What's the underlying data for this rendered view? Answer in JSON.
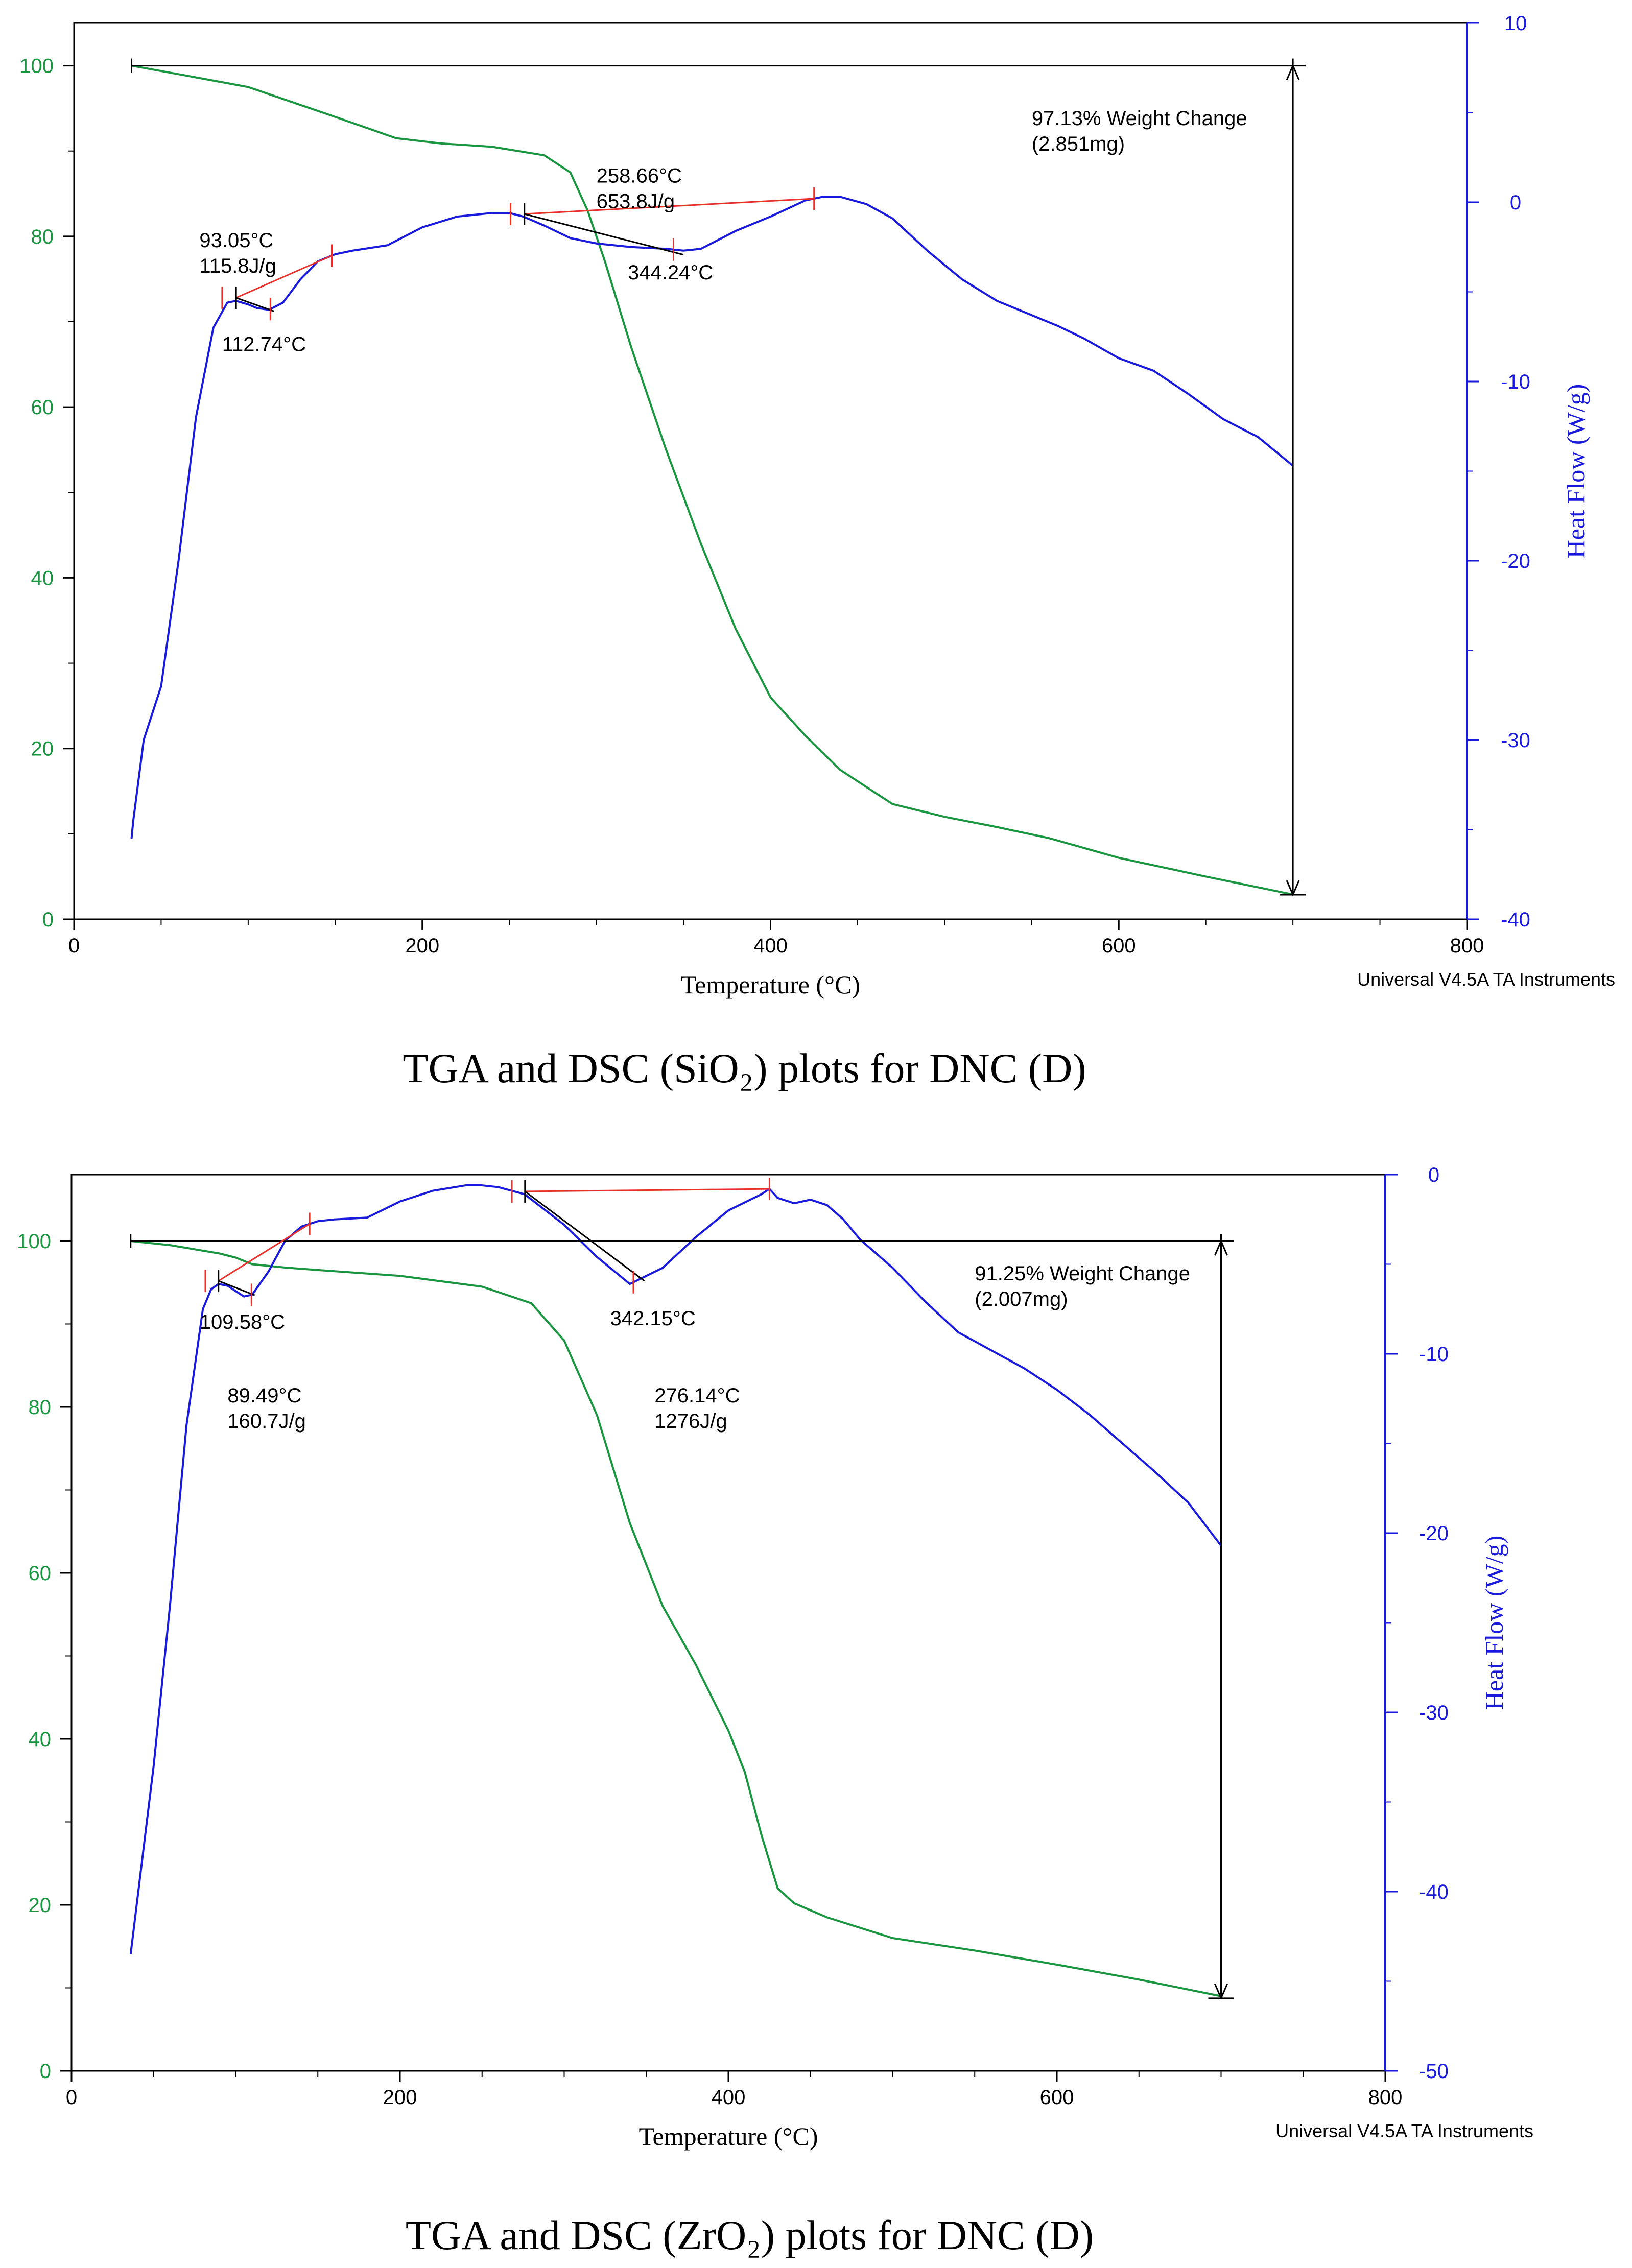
{
  "colors": {
    "tga": "#1a9641",
    "dsc": "#1a1adc",
    "annotation_marker": "#e8312a",
    "annotation_line": "#000000",
    "axes": "#000000"
  },
  "chart_data": [
    {
      "type": "line",
      "title": "TGA and DSC (SiO2) plots for DNC (D)",
      "caption": "TGA and DSC (SiO₂) plots for DNC (D)",
      "xlabel": "Temperature (°C)",
      "ylabel_left": "",
      "ylabel_right": "Heat Flow (W/g)",
      "instrument": "Universal V4.5A TA Instruments",
      "xlim": [
        0,
        800
      ],
      "ylim_left": [
        0,
        105
      ],
      "ylim_right": [
        -40,
        10
      ],
      "xticks": [
        0,
        200,
        400,
        600,
        800
      ],
      "yticks_left": [
        0,
        20,
        40,
        60,
        80,
        100
      ],
      "yticks_right": [
        -40,
        -30,
        -20,
        -10,
        0,
        10
      ],
      "series": [
        {
          "name": "TGA weight (%)",
          "axis": "left",
          "color_key": "tga",
          "x": [
            33,
            60,
            100,
            150,
            185,
            210,
            240,
            270,
            285,
            295,
            305,
            320,
            340,
            360,
            380,
            400,
            420,
            440,
            470,
            500,
            530,
            560,
            600,
            650,
            700
          ],
          "y": [
            100,
            99,
            97.5,
            94,
            91.5,
            90.9,
            90.5,
            89.5,
            87.5,
            83,
            77,
            67,
            55,
            44,
            34,
            26,
            21.5,
            17.5,
            13.5,
            12,
            10.8,
            9.5,
            7.2,
            5,
            2.9
          ]
        },
        {
          "name": "DSC heat flow (W/g)",
          "axis": "right",
          "color_key": "dsc",
          "x": [
            33,
            34,
            40,
            45,
            50,
            60,
            70,
            80,
            88,
            93,
            100,
            105,
            112,
            120,
            130,
            140,
            150,
            160,
            180,
            200,
            220,
            240,
            250,
            258,
            270,
            285,
            300,
            320,
            340,
            350,
            360,
            380,
            400,
            420,
            430,
            440,
            455,
            470,
            490,
            510,
            530,
            550,
            565,
            580,
            600,
            620,
            640,
            660,
            680,
            700
          ],
          "y": [
            -35.5,
            -34.5,
            -30,
            -28.5,
            -27,
            -20,
            -12,
            -7,
            -5.6,
            -5.5,
            -5.7,
            -5.9,
            -6,
            -5.6,
            -4.3,
            -3.3,
            -2.9,
            -2.7,
            -2.4,
            -1.4,
            -0.8,
            -0.6,
            -0.6,
            -0.8,
            -1.3,
            -2,
            -2.3,
            -2.5,
            -2.6,
            -2.7,
            -2.6,
            -1.6,
            -0.8,
            0.1,
            0.3,
            0.3,
            -0.1,
            -0.9,
            -2.7,
            -4.3,
            -5.5,
            -6.3,
            -6.9,
            -7.6,
            -8.7,
            -9.4,
            -10.7,
            -12.1,
            -13.1,
            -14.7
          ]
        }
      ],
      "annotations": [
        {
          "type": "weight_change",
          "label": "97.13% Weight Change",
          "sublabel": "(2.851mg)",
          "x": 700,
          "y_top": 100,
          "y_bottom": 2.87,
          "x_start": 33
        },
        {
          "type": "peak",
          "label": "93.05°C",
          "sublabel": "115.8J/g",
          "onset": 93.05,
          "end": 148,
          "min": 112.74
        },
        {
          "type": "peak_min",
          "label": "112.74°C",
          "x": 112.74
        },
        {
          "type": "peak",
          "label": "258.66°C",
          "sublabel": "653.8J/g",
          "onset": 258.66,
          "end": 425,
          "min": 344.24
        },
        {
          "type": "peak_min",
          "label": "344.24°C",
          "x": 344.24
        }
      ]
    },
    {
      "type": "line",
      "title": "TGA and DSC (ZrO2) plots for DNC (D)",
      "caption": "TGA and DSC (ZrO₂) plots for DNC (D)",
      "xlabel": "Temperature (°C)",
      "ylabel_left": "",
      "ylabel_right": "Heat Flow (W/g)",
      "instrument": "Universal V4.5A TA Instruments",
      "xlim": [
        0,
        800
      ],
      "ylim_left": [
        0,
        108
      ],
      "ylim_right": [
        -50,
        0
      ],
      "xticks": [
        0,
        200,
        400,
        600,
        800
      ],
      "yticks_left": [
        0,
        20,
        40,
        60,
        80,
        100
      ],
      "yticks_right": [
        -50,
        -40,
        -30,
        -20,
        -10,
        0
      ],
      "series": [
        {
          "name": "TGA weight (%)",
          "axis": "left",
          "color_key": "tga",
          "x": [
            36,
            60,
            90,
            100,
            110,
            130,
            150,
            200,
            250,
            280,
            300,
            320,
            340,
            360,
            380,
            400,
            410,
            420,
            430,
            440,
            460,
            500,
            550,
            600,
            650,
            700
          ],
          "y": [
            100,
            99.5,
            98.5,
            98,
            97.2,
            96.8,
            96.5,
            95.8,
            94.5,
            92.5,
            88,
            79,
            66,
            56,
            49,
            41,
            36,
            28.5,
            22,
            20.2,
            18.5,
            16,
            14.5,
            12.8,
            11,
            9
          ]
        },
        {
          "name": "DSC heat flow (W/g)",
          "axis": "right",
          "color_key": "dsc",
          "x": [
            36,
            42,
            50,
            60,
            70,
            80,
            85,
            89.5,
            95,
            100,
            105,
            110,
            120,
            130,
            140,
            150,
            160,
            180,
            200,
            220,
            240,
            250,
            260,
            276,
            300,
            320,
            340,
            360,
            380,
            400,
            420,
            425,
            430,
            440,
            450,
            460,
            470,
            480,
            500,
            520,
            540,
            560,
            580,
            600,
            620,
            640,
            660,
            680,
            700
          ],
          "y": [
            -43.5,
            -39,
            -33,
            -24,
            -14,
            -7.5,
            -6.4,
            -6.1,
            -6.2,
            -6.5,
            -6.8,
            -6.7,
            -5.4,
            -3.7,
            -2.9,
            -2.6,
            -2.5,
            -2.4,
            -1.5,
            -0.9,
            -0.6,
            -0.6,
            -0.7,
            -1.1,
            -2.8,
            -4.6,
            -6.1,
            -5.2,
            -3.5,
            -2.0,
            -1.1,
            -0.8,
            -1.3,
            -1.6,
            -1.4,
            -1.7,
            -2.5,
            -3.6,
            -5.2,
            -7.1,
            -8.8,
            -9.8,
            -10.8,
            -12,
            -13.4,
            -15,
            -16.6,
            -18.3,
            -20.7
          ]
        }
      ],
      "annotations": [
        {
          "type": "weight_change",
          "label": "91.25% Weight Change",
          "sublabel": "(2.007mg)",
          "x": 700,
          "y_top": 100,
          "y_bottom": 8.75,
          "x_start": 36
        },
        {
          "type": "peak_min",
          "label": "109.58°C",
          "x": 109.58
        },
        {
          "type": "peak",
          "label": "89.49°C",
          "sublabel": "160.7J/g",
          "onset": 89.49,
          "end": 145,
          "min": 109.58
        },
        {
          "type": "peak_min",
          "label": "342.15°C",
          "x": 342.15
        },
        {
          "type": "peak",
          "label": "276.14°C",
          "sublabel": "1276J/g",
          "onset": 276.14,
          "end": 425,
          "min": 342.15
        }
      ]
    }
  ]
}
